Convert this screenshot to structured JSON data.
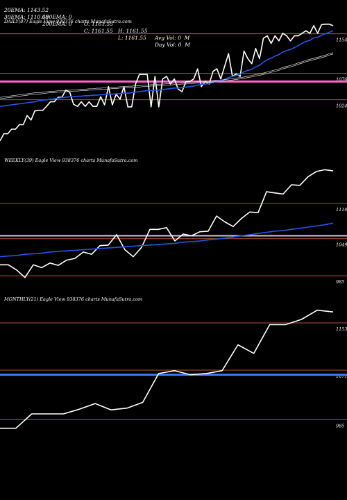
{
  "header": {
    "row1": {
      "ema20": "20EMA: 1143.52",
      "ema100": "100EMA: 0",
      "open": "O: 1161.55",
      "high": "H: 1161.55",
      "avgvol": "Avg Vol: 0  M"
    },
    "row2": {
      "ema30": "30EMA: 1110.68",
      "ema200": "200EMA: 0",
      "close": "C: 1161.55",
      "low": "L: 1161.55",
      "dayvol": "Day Vol: 0  M"
    }
  },
  "colors": {
    "price": "#ffffff",
    "ema_fast": "#2255ee",
    "ema_slow": "#dddddd",
    "level_line": "#b4563a",
    "highlight_daily": "#ff66cc",
    "highlight_weekly": "#cccccc",
    "highlight_monthly": "#4477ff"
  },
  "chart_data": [
    {
      "type": "line",
      "title": "DAILY(87) Eagle   View  938376  charts MunafaSutra.com",
      "yticks": [
        "1154",
        "1076",
        "1024"
      ],
      "level_values": [
        1154,
        1076,
        1024
      ],
      "highlight_value": 1060,
      "ylim": [
        925,
        1185
      ],
      "grid": false,
      "series": [
        {
          "role": "price",
          "values": [
            943,
            957,
            957,
            966,
            966,
            975,
            975,
            993,
            984,
            1002,
            1003,
            1003,
            1011,
            1020,
            1020,
            1029,
            1029,
            1043,
            1039,
            1015,
            1011,
            1020,
            1011,
            1020,
            1011,
            1011,
            1030,
            1014,
            1050,
            1014,
            1035,
            1025,
            1050,
            1010,
            1010,
            1055,
            1074,
            1074,
            1074,
            1010,
            1070,
            1010,
            1065,
            1070,
            1055,
            1065,
            1045,
            1040,
            1060,
            1060,
            1065,
            1085,
            1050,
            1060,
            1055,
            1080,
            1085,
            1065,
            1090,
            1115,
            1070,
            1075,
            1070,
            1120,
            1105,
            1095,
            1125,
            1105,
            1145,
            1150,
            1135,
            1150,
            1140,
            1155,
            1150,
            1140,
            1150,
            1150,
            1155,
            1160,
            1155,
            1170,
            1155,
            1172,
            1173,
            1173,
            1170
          ]
        },
        {
          "role": "ema_fast",
          "values": [
            1011,
            1012,
            1013,
            1014,
            1015,
            1016,
            1017,
            1018,
            1019,
            1020,
            1022,
            1023,
            1024,
            1025,
            1026,
            1027,
            1028,
            1029,
            1030,
            1030,
            1031,
            1031,
            1032,
            1032,
            1033,
            1033,
            1034,
            1034,
            1035,
            1035,
            1036,
            1036,
            1037,
            1037,
            1038,
            1039,
            1040,
            1041,
            1042,
            1042,
            1043,
            1043,
            1044,
            1045,
            1046,
            1047,
            1047,
            1048,
            1049,
            1050,
            1051,
            1053,
            1054,
            1055,
            1056,
            1058,
            1060,
            1061,
            1064,
            1068,
            1070,
            1072,
            1074,
            1079,
            1082,
            1084,
            1089,
            1092,
            1098,
            1103,
            1106,
            1110,
            1113,
            1118,
            1121,
            1123,
            1127,
            1131,
            1135,
            1139,
            1141,
            1146,
            1147,
            1151,
            1154,
            1157,
            1160
          ]
        },
        {
          "role": "ema_slow",
          "values": [
            1026,
            1027,
            1028,
            1029,
            1030,
            1031,
            1032,
            1033,
            1034,
            1035,
            1035,
            1036,
            1037,
            1038,
            1038,
            1039,
            1039,
            1040,
            1040,
            1041,
            1041,
            1042,
            1042,
            1043,
            1043,
            1044,
            1044,
            1045,
            1045,
            1046,
            1046,
            1047,
            1047,
            1048,
            1048,
            1049,
            1049,
            1050,
            1050,
            1051,
            1051,
            1052,
            1052,
            1053,
            1053,
            1054,
            1054,
            1055,
            1055,
            1056,
            1056,
            1057,
            1057,
            1058,
            1058,
            1059,
            1060,
            1060,
            1061,
            1062,
            1063,
            1064,
            1065,
            1066,
            1068,
            1069,
            1071,
            1072,
            1074,
            1076,
            1078,
            1080,
            1082,
            1085,
            1087,
            1089,
            1091,
            1094,
            1096,
            1099,
            1101,
            1103,
            1105,
            1107,
            1109,
            1112,
            1114
          ]
        }
      ]
    },
    {
      "type": "line",
      "title": "WEEKLY(39) Eagle   View  938376  charts MunafaSutra.com",
      "yticks": [
        "1110",
        "1049",
        "985"
      ],
      "level_values": [
        1110,
        1049,
        985
      ],
      "highlight_value": 1054,
      "ylim": [
        960,
        1190
      ],
      "grid": false,
      "series": [
        {
          "role": "price",
          "values": [
            1004,
            1004,
            995,
            982,
            1004,
            999,
            1007,
            1003,
            1012,
            1015,
            1026,
            1022,
            1037,
            1038,
            1056,
            1030,
            1018,
            1034,
            1065,
            1065,
            1068,
            1045,
            1057,
            1054,
            1061,
            1062,
            1088,
            1078,
            1070,
            1084,
            1095,
            1094,
            1130,
            1128,
            1126,
            1142,
            1141,
            1156,
            1165,
            1168,
            1166
          ]
        },
        {
          "role": "ema_fast",
          "values": [
            1018,
            1019,
            1020,
            1022,
            1023,
            1024,
            1026,
            1027,
            1028,
            1029,
            1030,
            1031,
            1032,
            1033,
            1034,
            1035,
            1036,
            1037,
            1038,
            1039,
            1040,
            1041,
            1043,
            1044,
            1045,
            1047,
            1048,
            1050,
            1052,
            1054,
            1056,
            1058,
            1060,
            1062,
            1063,
            1065,
            1067,
            1069,
            1071,
            1073,
            1076
          ]
        }
      ]
    },
    {
      "type": "line",
      "title": "MONTHLY(21) Eagle   View  938376  charts MunafaSutra.com",
      "yticks": [
        "1153",
        "1071",
        "985"
      ],
      "level_values": [
        1153,
        1071,
        985
      ],
      "highlight_value": 1063,
      "ylim": [
        960,
        1200
      ],
      "grid": false,
      "series": [
        {
          "role": "price",
          "values": [
            970,
            970,
            995,
            995,
            995,
            1003,
            1013,
            1002,
            1005,
            1015,
            1065,
            1070,
            1063,
            1065,
            1070,
            1115,
            1100,
            1150,
            1150,
            1159,
            1175,
            1172
          ]
        }
      ]
    }
  ]
}
